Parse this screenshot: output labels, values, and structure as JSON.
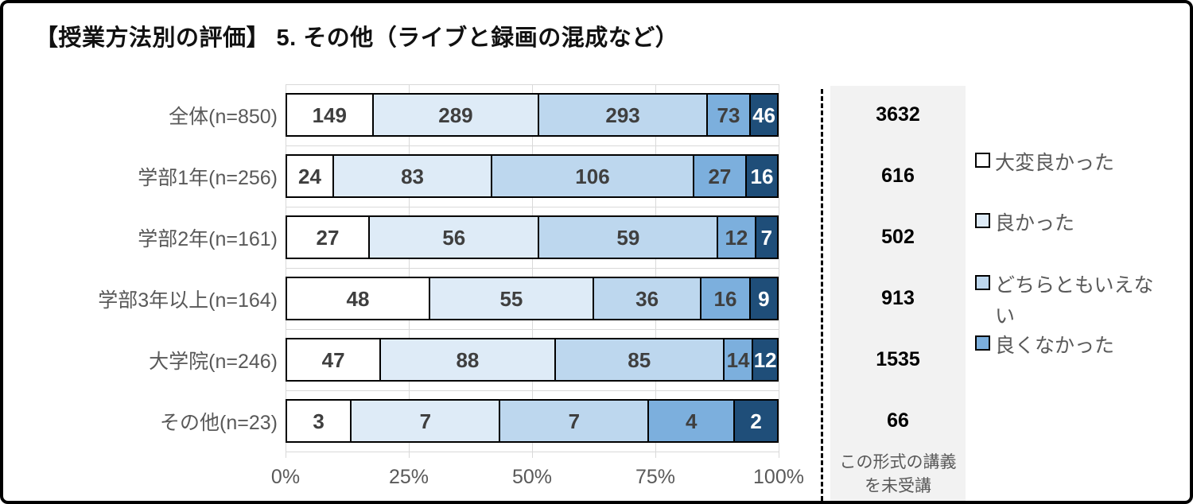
{
  "title": "【授業方法別の評価】 5. その他（ライブと録画の混成など）",
  "chart_data": {
    "type": "bar",
    "orientation": "horizontal",
    "stacked": "100%",
    "title": "【授業方法別の評価】 5. その他（ライブと録画の混成など）",
    "categories": [
      "全体(n=850)",
      "学部1年(n=256)",
      "学部2年(n=161)",
      "学部3年以上(n=164)",
      "大学院(n=246)",
      "その他(n=23)"
    ],
    "totals": [
      850,
      256,
      161,
      164,
      246,
      23
    ],
    "series": [
      {
        "name": "大変良かった",
        "color": "#FFFFFF",
        "text_color": "#3F3F3F",
        "values": [
          149,
          24,
          27,
          48,
          47,
          3
        ]
      },
      {
        "name": "良かった",
        "color": "#DEEBF7",
        "text_color": "#3F3F3F",
        "values": [
          289,
          83,
          56,
          55,
          88,
          7
        ]
      },
      {
        "name": "どちらともいえない",
        "color": "#BDD7EE",
        "text_color": "#3F3F3F",
        "values": [
          293,
          106,
          59,
          36,
          85,
          7
        ]
      },
      {
        "name": "良くなかった",
        "color": "#7CAFDD",
        "text_color": "#3F3F3F",
        "values": [
          73,
          27,
          12,
          16,
          14,
          4
        ]
      },
      {
        "name": "",
        "color": "#1F4E79",
        "text_color": "#FFFFFF",
        "values": [
          46,
          16,
          7,
          9,
          12,
          2
        ]
      }
    ],
    "x_ticks": [
      "0%",
      "25%",
      "50%",
      "75%",
      "100%"
    ],
    "x_range": [
      0,
      100
    ],
    "grid": true,
    "legend_position": "right",
    "legend_items": [
      "大変良かった",
      "良かった",
      "どちらともいえない",
      "良くなかった"
    ]
  },
  "side_panel": {
    "values": [
      "3632",
      "616",
      "502",
      "913",
      "1535",
      "66"
    ],
    "footer": "この形式の講義を未受講",
    "bg_color": "#F2F2F2"
  },
  "style_colors": {
    "gridline": "#D9D9D9",
    "axis_text": "#595959",
    "bar_border": "#000000",
    "last_segment": "#1F4E79"
  }
}
